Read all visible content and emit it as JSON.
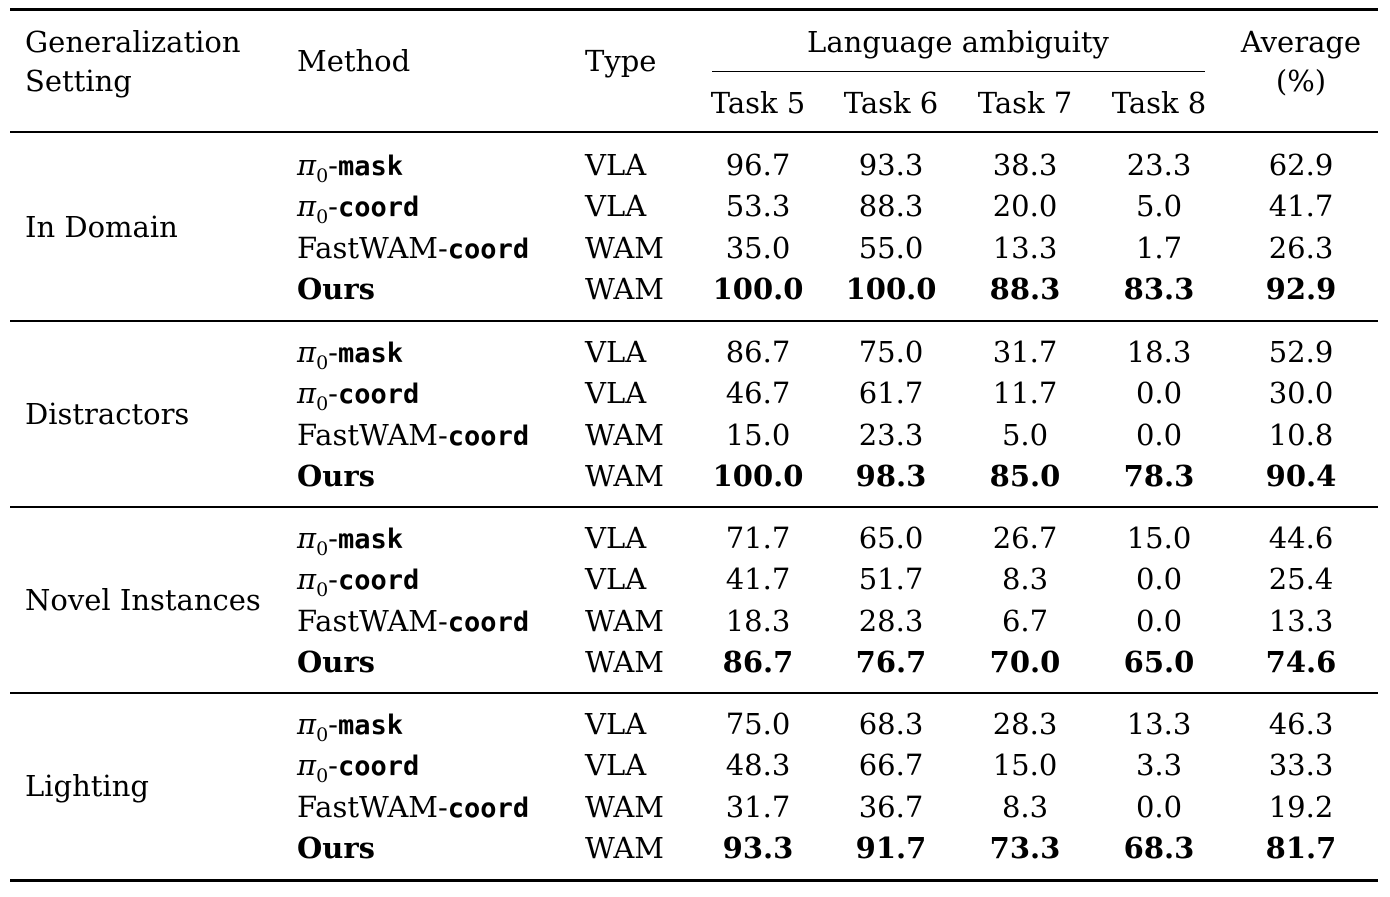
{
  "header": {
    "setting_line1": "Generalization",
    "setting_line2": "Setting",
    "method": "Method",
    "type": "Type",
    "group": "Language ambiguity",
    "tasks": [
      "Task 5",
      "Task 6",
      "Task 7",
      "Task 8"
    ],
    "average_line1": "Average",
    "average_line2": "(%)"
  },
  "groups": [
    {
      "setting": "In Domain",
      "rows": [
        {
          "method_prefix": "π",
          "method_sub": "0",
          "method_suffix": "mask",
          "type": "VLA",
          "values": [
            "96.7",
            "93.3",
            "38.3",
            "23.3"
          ],
          "average": "62.9"
        },
        {
          "method_prefix": "π",
          "method_sub": "0",
          "method_suffix": "coord",
          "type": "VLA",
          "values": [
            "53.3",
            "88.3",
            "20.0",
            "5.0"
          ],
          "average": "41.7"
        },
        {
          "method_prefix": "FastWAM",
          "method_sub": "",
          "method_suffix": "coord",
          "type": "WAM",
          "values": [
            "35.0",
            "55.0",
            "13.3",
            "1.7"
          ],
          "average": "26.3"
        },
        {
          "method_prefix": "Ours",
          "method_sub": "",
          "method_suffix": "",
          "type": "WAM",
          "values": [
            "100.0",
            "100.0",
            "88.3",
            "83.3"
          ],
          "average": "92.9"
        }
      ]
    },
    {
      "setting": "Distractors",
      "rows": [
        {
          "method_prefix": "π",
          "method_sub": "0",
          "method_suffix": "mask",
          "type": "VLA",
          "values": [
            "86.7",
            "75.0",
            "31.7",
            "18.3"
          ],
          "average": "52.9"
        },
        {
          "method_prefix": "π",
          "method_sub": "0",
          "method_suffix": "coord",
          "type": "VLA",
          "values": [
            "46.7",
            "61.7",
            "11.7",
            "0.0"
          ],
          "average": "30.0"
        },
        {
          "method_prefix": "FastWAM",
          "method_sub": "",
          "method_suffix": "coord",
          "type": "WAM",
          "values": [
            "15.0",
            "23.3",
            "5.0",
            "0.0"
          ],
          "average": "10.8"
        },
        {
          "method_prefix": "Ours",
          "method_sub": "",
          "method_suffix": "",
          "type": "WAM",
          "values": [
            "100.0",
            "98.3",
            "85.0",
            "78.3"
          ],
          "average": "90.4"
        }
      ]
    },
    {
      "setting": "Novel Instances",
      "rows": [
        {
          "method_prefix": "π",
          "method_sub": "0",
          "method_suffix": "mask",
          "type": "VLA",
          "values": [
            "71.7",
            "65.0",
            "26.7",
            "15.0"
          ],
          "average": "44.6"
        },
        {
          "method_prefix": "π",
          "method_sub": "0",
          "method_suffix": "coord",
          "type": "VLA",
          "values": [
            "41.7",
            "51.7",
            "8.3",
            "0.0"
          ],
          "average": "25.4"
        },
        {
          "method_prefix": "FastWAM",
          "method_sub": "",
          "method_suffix": "coord",
          "type": "WAM",
          "values": [
            "18.3",
            "28.3",
            "6.7",
            "0.0"
          ],
          "average": "13.3"
        },
        {
          "method_prefix": "Ours",
          "method_sub": "",
          "method_suffix": "",
          "type": "WAM",
          "values": [
            "86.7",
            "76.7",
            "70.0",
            "65.0"
          ],
          "average": "74.6"
        }
      ]
    },
    {
      "setting": "Lighting",
      "rows": [
        {
          "method_prefix": "π",
          "method_sub": "0",
          "method_suffix": "mask",
          "type": "VLA",
          "values": [
            "75.0",
            "68.3",
            "28.3",
            "13.3"
          ],
          "average": "46.3"
        },
        {
          "method_prefix": "π",
          "method_sub": "0",
          "method_suffix": "coord",
          "type": "VLA",
          "values": [
            "48.3",
            "66.7",
            "15.0",
            "3.3"
          ],
          "average": "33.3"
        },
        {
          "method_prefix": "FastWAM",
          "method_sub": "",
          "method_suffix": "coord",
          "type": "WAM",
          "values": [
            "31.7",
            "36.7",
            "8.3",
            "0.0"
          ],
          "average": "19.2"
        },
        {
          "method_prefix": "Ours",
          "method_sub": "",
          "method_suffix": "",
          "type": "WAM",
          "values": [
            "93.3",
            "91.7",
            "73.3",
            "68.3"
          ],
          "average": "81.7"
        }
      ]
    }
  ]
}
